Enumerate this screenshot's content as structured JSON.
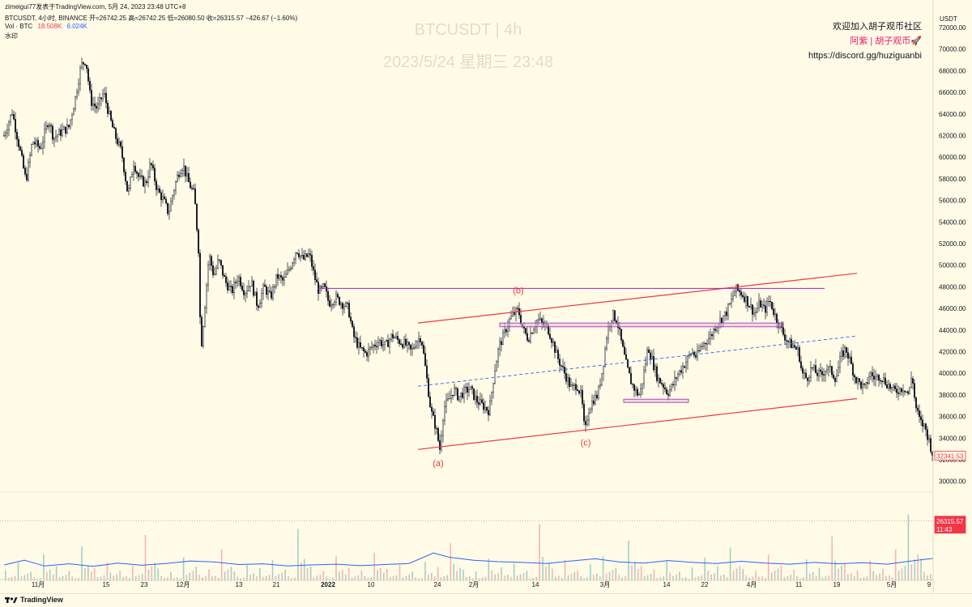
{
  "header": {
    "publisher_line": "zimeigui77发表于TradingView.com,  5月 24, 2023 23:48 UTC+8",
    "symbol_line": "BTCUSDT, 4小时, BINANCE  开=26742.25  高=26742.25  低=26080.50  收=26315.57  −426.67 (−1.60%)",
    "vol_label": "Vol · BTC",
    "vol_value_1": "18.508K",
    "vol_value_2": "6.024K",
    "watermark_label": "水印"
  },
  "watermark": {
    "title": "BTCUSDT | 4h",
    "datetime": "2023/5/24 星期三 23:48"
  },
  "promo": {
    "line1": "欢迎加入胡子观币社区",
    "line2": "阿紫 | 胡子观币🚀",
    "line3": "https://discord.gg/huziguanbi"
  },
  "colors": {
    "background": "#fffbe6",
    "candle": "#131722",
    "channel": "#f23645",
    "purple_line": "#9c27b0",
    "box": "#e1bee7",
    "midline": "#2962ff",
    "volume_up": "#9fd2ca",
    "volume_down": "#f5b4b4",
    "volume_ma": "#2962ff",
    "price_label": "#f23645"
  },
  "chart_data": {
    "type": "candlestick",
    "symbol": "BTCUSDT",
    "interval": "4h",
    "exchange": "BINANCE",
    "currency": "USDT",
    "ylabel": "USDT",
    "ylim": [
      29000,
      73500
    ],
    "y_ticks": [
      30000,
      32000,
      34000,
      36000,
      38000,
      40000,
      42000,
      44000,
      46000,
      48000,
      50000,
      52000,
      54000,
      56000,
      58000,
      60000,
      62000,
      64000,
      66000,
      68000,
      70000,
      72000
    ],
    "y_tick_labels": [
      "30000.00",
      "32000.00",
      "34000.00",
      "36000.00",
      "38000.00",
      "40000.00",
      "42000.00",
      "44000.00",
      "46000.00",
      "48000.00",
      "50000.00",
      "52000.00",
      "54000.00",
      "56000.00",
      "58000.00",
      "60000.00",
      "62000.00",
      "64000.00",
      "66000.00",
      "68000.00",
      "70000.00",
      "72000.00"
    ],
    "x_range": [
      0,
      1152
    ],
    "x_ticks": [
      {
        "label": "11月",
        "x": 47
      },
      {
        "label": "15",
        "x": 131
      },
      {
        "label": "23",
        "x": 178
      },
      {
        "label": "12月",
        "x": 226
      },
      {
        "label": "13",
        "x": 295
      },
      {
        "label": "21",
        "x": 341
      },
      {
        "label": "2022",
        "x": 405,
        "bold": true
      },
      {
        "label": "10",
        "x": 458
      },
      {
        "label": "24",
        "x": 540
      },
      {
        "label": "2月",
        "x": 585
      },
      {
        "label": "14",
        "x": 661
      },
      {
        "label": "3月",
        "x": 747
      },
      {
        "label": "14",
        "x": 823
      },
      {
        "label": "22",
        "x": 870
      },
      {
        "label": "4月",
        "x": 928
      },
      {
        "label": "11",
        "x": 986
      },
      {
        "label": "19",
        "x": 1033
      },
      {
        "label": "5月",
        "x": 1101
      },
      {
        "label": "9",
        "x": 1147
      }
    ],
    "price_path": [
      [
        5,
        62000
      ],
      [
        15,
        64200
      ],
      [
        25,
        60500
      ],
      [
        32,
        57800
      ],
      [
        40,
        61500
      ],
      [
        50,
        60800
      ],
      [
        60,
        63500
      ],
      [
        66,
        61800
      ],
      [
        75,
        62300
      ],
      [
        85,
        62800
      ],
      [
        93,
        65500
      ],
      [
        100,
        68500
      ],
      [
        106,
        69000
      ],
      [
        112,
        65200
      ],
      [
        120,
        64500
      ],
      [
        128,
        66000
      ],
      [
        136,
        63500
      ],
      [
        142,
        62000
      ],
      [
        150,
        60500
      ],
      [
        158,
        56500
      ],
      [
        165,
        59500
      ],
      [
        172,
        58000
      ],
      [
        180,
        57500
      ],
      [
        186,
        59500
      ],
      [
        194,
        57000
      ],
      [
        202,
        56000
      ],
      [
        208,
        54800
      ],
      [
        214,
        56800
      ],
      [
        220,
        58500
      ],
      [
        226,
        59300
      ],
      [
        232,
        57800
      ],
      [
        240,
        56500
      ],
      [
        245,
        51500
      ],
      [
        248,
        42000
      ],
      [
        252,
        45500
      ],
      [
        258,
        51000
      ],
      [
        264,
        49000
      ],
      [
        270,
        50500
      ],
      [
        278,
        48500
      ],
      [
        286,
        47500
      ],
      [
        294,
        49000
      ],
      [
        302,
        47500
      ],
      [
        310,
        48500
      ],
      [
        318,
        46200
      ],
      [
        326,
        48000
      ],
      [
        334,
        47000
      ],
      [
        342,
        49000
      ],
      [
        350,
        48500
      ],
      [
        358,
        49800
      ],
      [
        366,
        51500
      ],
      [
        374,
        50500
      ],
      [
        382,
        51000
      ],
      [
        388,
        49000
      ],
      [
        394,
        47500
      ],
      [
        400,
        48000
      ],
      [
        406,
        46500
      ],
      [
        414,
        47000
      ],
      [
        422,
        46500
      ],
      [
        430,
        46000
      ],
      [
        436,
        43500
      ],
      [
        444,
        42300
      ],
      [
        452,
        41800
      ],
      [
        460,
        42500
      ],
      [
        468,
        43000
      ],
      [
        476,
        42500
      ],
      [
        484,
        43500
      ],
      [
        492,
        43000
      ],
      [
        500,
        42700
      ],
      [
        508,
        42000
      ],
      [
        514,
        43000
      ],
      [
        520,
        43400
      ],
      [
        526,
        40000
      ],
      [
        532,
        36500
      ],
      [
        538,
        35000
      ],
      [
        543,
        33000
      ],
      [
        548,
        36800
      ],
      [
        554,
        37500
      ],
      [
        560,
        38500
      ],
      [
        566,
        37800
      ],
      [
        572,
        38200
      ],
      [
        580,
        38600
      ],
      [
        588,
        37500
      ],
      [
        596,
        37000
      ],
      [
        604,
        36500
      ],
      [
        610,
        40000
      ],
      [
        616,
        42500
      ],
      [
        622,
        43500
      ],
      [
        628,
        44800
      ],
      [
        634,
        45500
      ],
      [
        640,
        45800
      ],
      [
        646,
        44000
      ],
      [
        652,
        43200
      ],
      [
        658,
        44200
      ],
      [
        664,
        45000
      ],
      [
        670,
        44500
      ],
      [
        676,
        44200
      ],
      [
        682,
        43000
      ],
      [
        688,
        41500
      ],
      [
        694,
        40500
      ],
      [
        700,
        39500
      ],
      [
        706,
        38500
      ],
      [
        712,
        39000
      ],
      [
        718,
        37800
      ],
      [
        722,
        34300
      ],
      [
        726,
        36500
      ],
      [
        732,
        37500
      ],
      [
        738,
        38000
      ],
      [
        744,
        40500
      ],
      [
        750,
        44000
      ],
      [
        756,
        45500
      ],
      [
        762,
        44800
      ],
      [
        768,
        42500
      ],
      [
        774,
        40500
      ],
      [
        780,
        39000
      ],
      [
        786,
        38200
      ],
      [
        790,
        38000
      ],
      [
        796,
        40500
      ],
      [
        800,
        42500
      ],
      [
        806,
        41000
      ],
      [
        812,
        39500
      ],
      [
        818,
        39000
      ],
      [
        824,
        38200
      ],
      [
        830,
        38800
      ],
      [
        836,
        39800
      ],
      [
        842,
        40500
      ],
      [
        848,
        41200
      ],
      [
        854,
        42000
      ],
      [
        860,
        41500
      ],
      [
        866,
        42500
      ],
      [
        872,
        43000
      ],
      [
        878,
        43500
      ],
      [
        884,
        44500
      ],
      [
        890,
        45000
      ],
      [
        896,
        45500
      ],
      [
        902,
        46500
      ],
      [
        908,
        47800
      ],
      [
        914,
        47500
      ],
      [
        920,
        47000
      ],
      [
        926,
        46200
      ],
      [
        932,
        45500
      ],
      [
        938,
        46500
      ],
      [
        944,
        45800
      ],
      [
        950,
        46800
      ],
      [
        956,
        45500
      ],
      [
        962,
        44500
      ],
      [
        968,
        43500
      ],
      [
        974,
        42800
      ],
      [
        980,
        42500
      ],
      [
        986,
        42000
      ],
      [
        990,
        40000
      ],
      [
        996,
        39500
      ],
      [
        1002,
        40500
      ],
      [
        1008,
        40000
      ],
      [
        1014,
        39800
      ],
      [
        1020,
        40500
      ],
      [
        1026,
        40200
      ],
      [
        1032,
        39500
      ],
      [
        1038,
        41500
      ],
      [
        1044,
        42300
      ],
      [
        1050,
        41000
      ],
      [
        1056,
        39500
      ],
      [
        1062,
        39000
      ],
      [
        1068,
        38500
      ],
      [
        1074,
        40000
      ],
      [
        1080,
        39500
      ],
      [
        1086,
        39800
      ],
      [
        1092,
        39300
      ],
      [
        1098,
        38800
      ],
      [
        1104,
        38300
      ],
      [
        1110,
        38500
      ],
      [
        1116,
        38700
      ],
      [
        1122,
        38000
      ],
      [
        1126,
        40000
      ],
      [
        1130,
        37000
      ],
      [
        1136,
        35500
      ],
      [
        1142,
        35000
      ],
      [
        1148,
        33500
      ],
      [
        1152,
        32300
      ]
    ],
    "annotations": [
      {
        "label": "(a)",
        "x": 541,
        "price": 31400
      },
      {
        "label": "(b)",
        "x": 640,
        "price": 47400
      },
      {
        "label": "(c)",
        "x": 723,
        "price": 33300
      }
    ],
    "lines": [
      {
        "name": "channel_upper",
        "x1": 516,
        "p1": 44650,
        "x2": 1058,
        "p2": 49250,
        "style": "channel"
      },
      {
        "name": "channel_lower",
        "x1": 516,
        "p1": 32950,
        "x2": 1058,
        "p2": 37650,
        "style": "channel"
      },
      {
        "name": "channel_mid",
        "x1": 516,
        "p1": 38800,
        "x2": 1058,
        "p2": 43450,
        "style": "dashed"
      },
      {
        "name": "resistance_b",
        "x1": 392,
        "p1": 47850,
        "x2": 1018,
        "p2": 47850,
        "style": "purple"
      }
    ],
    "zones": [
      {
        "name": "zone_upper",
        "x1": 617,
        "x2": 966,
        "p_top": 44650,
        "p_bottom": 44300
      },
      {
        "name": "zone_lower",
        "x1": 770,
        "x2": 850,
        "p_top": 37600,
        "p_bottom": 37300
      }
    ],
    "price_labels": [
      {
        "label": "32341.53",
        "price": 32341.53
      },
      {
        "label": "26315.57",
        "price": 26315.57
      },
      {
        "label": "11:43",
        "price": 25600
      }
    ],
    "volume_range": [
      0,
      40000
    ],
    "volume_bars": [
      3000,
      5200,
      2600,
      7400,
      4100,
      2800,
      9600,
      3600,
      5100,
      2900,
      4200,
      12800,
      3500,
      2500,
      6600,
      4000,
      3300,
      8800,
      2700,
      4500,
      3600,
      5800,
      3200,
      14500,
      4100,
      2800,
      6900,
      3700,
      2900,
      7800,
      3400,
      4500,
      2600,
      5300,
      3900,
      10500,
      3100,
      2700,
      6200,
      3800,
      4800,
      2900,
      15800,
      3500,
      5900,
      3000,
      4700,
      6900,
      3600,
      11200,
      4200,
      3300,
      5500,
      2600,
      3800,
      6500,
      4100,
      9300,
      3400,
      2900,
      7300,
      4300,
      3200,
      6000,
      3700,
      12400,
      4900,
      3000,
      5700,
      3400,
      8800,
      18500,
      6200
    ],
    "volume_up_flags": [
      1,
      0,
      1,
      0,
      1,
      0,
      1,
      1,
      0,
      1,
      0,
      1,
      1,
      0,
      1,
      0,
      0,
      1,
      1,
      0,
      1,
      0,
      1,
      0,
      1,
      1,
      0,
      1,
      0,
      1,
      0,
      1,
      1,
      0,
      0,
      1,
      1,
      0,
      1,
      0,
      1,
      0,
      0,
      1,
      0,
      1,
      1,
      0,
      1,
      0,
      0,
      1,
      1,
      0,
      1,
      0,
      1,
      0,
      1,
      1,
      0,
      1,
      0,
      0,
      1,
      1,
      0,
      1,
      0,
      1,
      0,
      0,
      1
    ],
    "volume_ma": [
      [
        5,
        4500
      ],
      [
        30,
        5800
      ],
      [
        55,
        4200
      ],
      [
        85,
        4800
      ],
      [
        115,
        4100
      ],
      [
        145,
        5000
      ],
      [
        175,
        4400
      ],
      [
        205,
        4900
      ],
      [
        235,
        5600
      ],
      [
        265,
        5300
      ],
      [
        295,
        4600
      ],
      [
        325,
        4800
      ],
      [
        355,
        4200
      ],
      [
        385,
        4500
      ],
      [
        415,
        4700
      ],
      [
        445,
        4300
      ],
      [
        475,
        4600
      ],
      [
        505,
        4900
      ],
      [
        535,
        7800
      ],
      [
        555,
        6600
      ],
      [
        585,
        5800
      ],
      [
        615,
        5400
      ],
      [
        645,
        5200
      ],
      [
        675,
        4900
      ],
      [
        705,
        5600
      ],
      [
        735,
        6200
      ],
      [
        765,
        5300
      ],
      [
        795,
        5000
      ],
      [
        825,
        5700
      ],
      [
        855,
        5200
      ],
      [
        885,
        4900
      ],
      [
        915,
        5500
      ],
      [
        945,
        5000
      ],
      [
        975,
        4700
      ],
      [
        1005,
        5200
      ],
      [
        1035,
        4800
      ],
      [
        1065,
        5100
      ],
      [
        1095,
        4700
      ],
      [
        1125,
        5600
      ],
      [
        1152,
        6300
      ]
    ]
  },
  "bottombar": {
    "brand": "TradingView"
  }
}
